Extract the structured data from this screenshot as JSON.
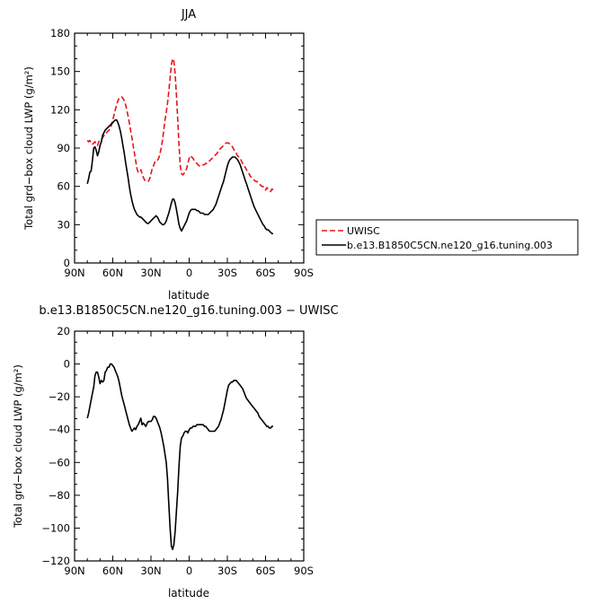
{
  "chart_data": [
    {
      "type": "line",
      "title": "JJA",
      "xlabel": "latitude",
      "ylabel": "Total grd−box cloud LWP (g/m²)",
      "x_ticks": [
        "90N",
        "60N",
        "30N",
        "0",
        "30S",
        "60S",
        "90S"
      ],
      "x_tick_lats": [
        90,
        60,
        30,
        0,
        -30,
        -60,
        -90
      ],
      "xlim": [
        90,
        -90
      ],
      "ylim": [
        0,
        180
      ],
      "y_ticks": [
        "0",
        "30",
        "60",
        "90",
        "120",
        "150",
        "180"
      ],
      "legend_placement": "right",
      "series": [
        {
          "name": "UWISC",
          "color": "#e8141b",
          "dash": "dashed",
          "x": [
            80,
            79,
            78,
            77,
            76,
            75,
            74,
            73,
            72,
            71,
            70,
            69,
            68,
            67,
            66,
            65,
            64,
            63,
            62,
            61,
            60,
            59,
            58,
            57,
            56,
            55,
            54,
            53,
            52,
            51,
            50,
            49,
            48,
            47,
            46,
            45,
            44,
            43,
            42,
            41,
            40,
            39,
            38,
            37,
            36,
            35,
            34,
            33,
            32,
            31,
            30,
            29,
            28,
            27,
            26,
            25,
            24,
            23,
            22,
            21,
            20,
            19,
            18,
            17,
            16,
            15,
            14,
            13,
            12,
            11,
            10,
            9,
            8,
            7,
            6,
            5,
            4,
            3,
            2,
            1,
            0,
            -1,
            -2,
            -3,
            -4,
            -5,
            -6,
            -7,
            -8,
            -9,
            -10,
            -11,
            -12,
            -13,
            -14,
            -15,
            -16,
            -17,
            -18,
            -19,
            -20,
            -21,
            -22,
            -23,
            -24,
            -25,
            -26,
            -27,
            -28,
            -29,
            -30,
            -31,
            -32,
            -33,
            -34,
            -35,
            -36,
            -37,
            -38,
            -39,
            -40,
            -41,
            -42,
            -43,
            -44,
            -45,
            -46,
            -47,
            -48,
            -49,
            -50,
            -51,
            -52,
            -53,
            -54,
            -55,
            -56,
            -57,
            -58,
            -59,
            -60,
            -61,
            -62,
            -63,
            -64,
            -65,
            -66
          ],
          "y": [
            96,
            95,
            96,
            94,
            93,
            94,
            95,
            93,
            92,
            95,
            96,
            97,
            98,
            100,
            100,
            102,
            103,
            104,
            106,
            108,
            112,
            116,
            120,
            124,
            127,
            129,
            130,
            130,
            129,
            127,
            124,
            120,
            115,
            110,
            104,
            98,
            92,
            86,
            80,
            74,
            71,
            71,
            73,
            70,
            67,
            65,
            64,
            64,
            64,
            66,
            70,
            74,
            76,
            79,
            80,
            80,
            82,
            85,
            90,
            96,
            104,
            112,
            118,
            125,
            134,
            145,
            155,
            160,
            158,
            148,
            132,
            112,
            92,
            76,
            70,
            69,
            70,
            72,
            74,
            78,
            82,
            84,
            83,
            82,
            80,
            79,
            78,
            77,
            76,
            76,
            76,
            77,
            77,
            78,
            78,
            79,
            80,
            81,
            82,
            83,
            84,
            85,
            86,
            88,
            89,
            90,
            91,
            92,
            93,
            94,
            94,
            94,
            93,
            92,
            91,
            89,
            87,
            86,
            84,
            83,
            82,
            80,
            78,
            76,
            75,
            73,
            71,
            70,
            68,
            67,
            66,
            65,
            64,
            64,
            63,
            62,
            61,
            60,
            60,
            58,
            57,
            59,
            58,
            57,
            56,
            58,
            57
          ],
          "_note": "",
          "y2": []
        },
        {
          "name": "b.e13.B1850C5CN.ne120_g16.tuning.003",
          "color": "#000000",
          "dash": "solid",
          "x": [
            80,
            79,
            78,
            77,
            76,
            75,
            74,
            73,
            72,
            71,
            70,
            69,
            68,
            67,
            66,
            65,
            64,
            63,
            62,
            61,
            60,
            59,
            58,
            57,
            56,
            55,
            54,
            53,
            52,
            51,
            50,
            49,
            48,
            47,
            46,
            45,
            44,
            43,
            42,
            41,
            40,
            39,
            38,
            37,
            36,
            35,
            34,
            33,
            32,
            31,
            30,
            29,
            28,
            27,
            26,
            25,
            24,
            23,
            22,
            21,
            20,
            19,
            18,
            17,
            16,
            15,
            14,
            13,
            12,
            11,
            10,
            9,
            8,
            7,
            6,
            5,
            4,
            3,
            2,
            1,
            0,
            -1,
            -2,
            -3,
            -4,
            -5,
            -6,
            -7,
            -8,
            -9,
            -10,
            -11,
            -12,
            -13,
            -14,
            -15,
            -16,
            -17,
            -18,
            -19,
            -20,
            -21,
            -22,
            -23,
            -24,
            -25,
            -26,
            -27,
            -28,
            -29,
            -30,
            -31,
            -32,
            -33,
            -34,
            -35,
            -36,
            -37,
            -38,
            -39,
            -40,
            -41,
            -42,
            -43,
            -44,
            -45,
            -46,
            -47,
            -48,
            -49,
            -50,
            -51,
            -52,
            -53,
            -54,
            -55,
            -56,
            -57,
            -58,
            -59,
            -60,
            -61,
            -62,
            -63,
            -64,
            -65,
            -66
          ],
          "y": [
            62,
            66,
            71,
            72,
            80,
            90,
            91,
            88,
            84,
            87,
            92,
            95,
            100,
            102,
            104,
            105,
            106,
            107,
            108,
            109,
            110,
            111,
            112,
            112,
            110,
            107,
            103,
            98,
            92,
            86,
            79,
            73,
            67,
            60,
            54,
            49,
            45,
            42,
            40,
            38,
            37,
            36,
            36,
            35,
            34,
            33,
            32,
            31,
            31,
            32,
            33,
            34,
            35,
            36,
            37,
            36,
            34,
            32,
            31,
            30,
            30,
            31,
            33,
            36,
            39,
            43,
            47,
            50,
            50,
            47,
            42,
            36,
            30,
            27,
            25,
            27,
            29,
            31,
            33,
            36,
            39,
            41,
            42,
            42,
            42,
            42,
            41,
            41,
            40,
            39,
            39,
            39,
            38,
            38,
            38,
            38,
            39,
            40,
            41,
            42,
            44,
            46,
            49,
            52,
            55,
            58,
            61,
            64,
            68,
            72,
            76,
            79,
            81,
            82,
            83,
            83,
            83,
            82,
            81,
            79,
            77,
            74,
            71,
            68,
            65,
            62,
            59,
            56,
            53,
            50,
            47,
            44,
            42,
            40,
            38,
            36,
            34,
            32,
            30,
            29,
            27,
            26,
            26,
            25,
            24,
            23,
            23
          ],
          "_note": ""
        }
      ]
    },
    {
      "type": "line",
      "title": "b.e13.B1850C5CN.ne120_g16.tuning.003  −  UWISC",
      "xlabel": "latitude",
      "ylabel": "Total grd−box cloud LWP (g/m²)",
      "x_ticks": [
        "90N",
        "60N",
        "30N",
        "0",
        "30S",
        "60S",
        "90S"
      ],
      "x_tick_lats": [
        90,
        60,
        30,
        0,
        -30,
        -60,
        -90
      ],
      "xlim": [
        90,
        -90
      ],
      "ylim": [
        -120,
        20
      ],
      "y_ticks": [
        "−120",
        "−100",
        "−80",
        "−60",
        "−40",
        "−20",
        "0",
        "20"
      ],
      "series": [
        {
          "name": "",
          "color": "#000000",
          "dash": "solid",
          "x": [
            80,
            79,
            78,
            77,
            76,
            75,
            74,
            73,
            72,
            71,
            70,
            69,
            68,
            67,
            66,
            65,
            64,
            63,
            62,
            61,
            60,
            59,
            58,
            57,
            56,
            55,
            54,
            53,
            52,
            51,
            50,
            49,
            48,
            47,
            46,
            45,
            44,
            43,
            42,
            41,
            40,
            39,
            38,
            37,
            36,
            35,
            34,
            33,
            32,
            31,
            30,
            29,
            28,
            27,
            26,
            25,
            24,
            23,
            22,
            21,
            20,
            19,
            18,
            17,
            16,
            15,
            14,
            13,
            12,
            11,
            10,
            9,
            8,
            7,
            6,
            5,
            4,
            3,
            2,
            1,
            0,
            -1,
            -2,
            -3,
            -4,
            -5,
            -6,
            -7,
            -8,
            -9,
            -10,
            -11,
            -12,
            -13,
            -14,
            -15,
            -16,
            -17,
            -18,
            -19,
            -20,
            -21,
            -22,
            -23,
            -24,
            -25,
            -26,
            -27,
            -28,
            -29,
            -30,
            -31,
            -32,
            -33,
            -34,
            -35,
            -36,
            -37,
            -38,
            -39,
            -40,
            -41,
            -42,
            -43,
            -44,
            -45,
            -46,
            -47,
            -48,
            -49,
            -50,
            -51,
            -52,
            -53,
            -54,
            -55,
            -56,
            -57,
            -58,
            -59,
            -60,
            -61,
            -62,
            -63,
            -64,
            -65,
            -66
          ],
          "y": [
            -33,
            -30,
            -26,
            -22,
            -18,
            -14,
            -7,
            -5,
            -5,
            -8,
            -12,
            -10,
            -11,
            -10,
            -5,
            -4,
            -2,
            -2,
            0,
            0,
            -1,
            -2,
            -4,
            -6,
            -8,
            -11,
            -15,
            -19,
            -22,
            -25,
            -28,
            -31,
            -34,
            -37,
            -39,
            -41,
            -40,
            -39,
            -40,
            -38,
            -37,
            -35,
            -33,
            -37,
            -36,
            -37,
            -38,
            -36,
            -35,
            -35,
            -35,
            -34,
            -32,
            -32,
            -33,
            -35,
            -37,
            -39,
            -42,
            -46,
            -50,
            -55,
            -60,
            -70,
            -85,
            -100,
            -111,
            -113,
            -110,
            -102,
            -90,
            -77,
            -62,
            -50,
            -45,
            -44,
            -42,
            -41,
            -41,
            -42,
            -40,
            -39,
            -39,
            -38,
            -38,
            -38,
            -37,
            -37,
            -37,
            -37,
            -37,
            -37,
            -38,
            -38,
            -39,
            -40,
            -41,
            -41,
            -41,
            -41,
            -41,
            -40,
            -39,
            -38,
            -36,
            -34,
            -31,
            -28,
            -24,
            -20,
            -16,
            -13,
            -12,
            -11,
            -11,
            -10,
            -10,
            -10,
            -11,
            -12,
            -13,
            -14,
            -15,
            -17,
            -19,
            -21,
            -22,
            -23,
            -24,
            -25,
            -26,
            -27,
            -28,
            -29,
            -30,
            -32,
            -33,
            -34,
            -35,
            -36,
            -37,
            -38,
            -38,
            -39,
            -39,
            -38,
            -38
          ]
        }
      ]
    }
  ]
}
